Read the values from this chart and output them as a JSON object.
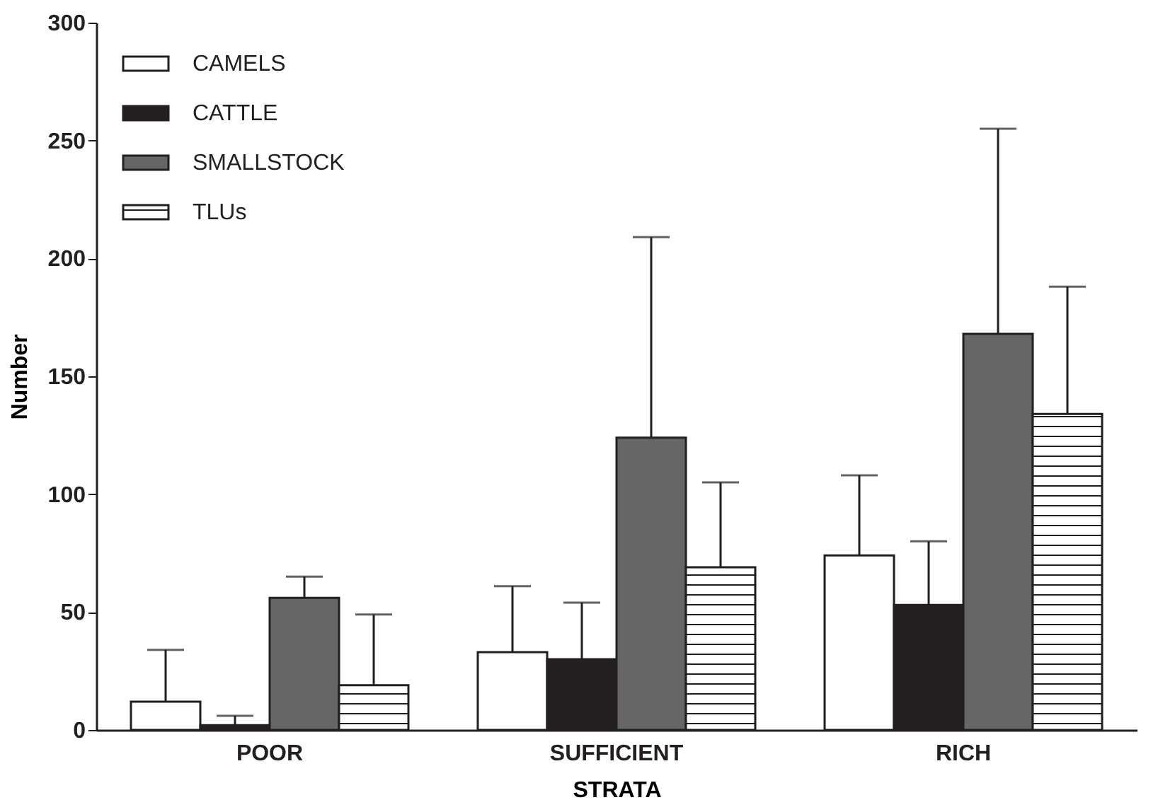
{
  "chart_data": {
    "type": "bar",
    "xlabel": "STRATA",
    "ylabel": "Number",
    "categories": [
      "POOR",
      "SUFFICIENT",
      "RICH"
    ],
    "series": [
      {
        "name": "CAMELS",
        "color": "#ffffff",
        "values": [
          12,
          33,
          74
        ],
        "errors": [
          [
            12,
            34
          ],
          [
            33,
            61
          ],
          [
            74,
            108
          ]
        ]
      },
      {
        "name": "CATTLE",
        "color": "#231f20",
        "values": [
          2,
          30,
          53
        ],
        "errors": [
          [
            2,
            6
          ],
          [
            30,
            54
          ],
          [
            53,
            80
          ]
        ]
      },
      {
        "name": "SMALLSTOCK",
        "color": "#666666",
        "values": [
          56,
          124,
          168
        ],
        "errors": [
          [
            56,
            65
          ],
          [
            124,
            209
          ],
          [
            168,
            255
          ]
        ]
      },
      {
        "name": "TLUs",
        "color": "#231f20",
        "values": [
          19,
          69,
          134
        ],
        "errors": [
          [
            19,
            49
          ],
          [
            69,
            105
          ],
          [
            134,
            188
          ]
        ]
      }
    ],
    "ylim": [
      0,
      300
    ],
    "yticks": [
      0,
      50,
      100,
      150,
      200,
      250,
      300
    ],
    "grid": false,
    "legend": "top left"
  }
}
